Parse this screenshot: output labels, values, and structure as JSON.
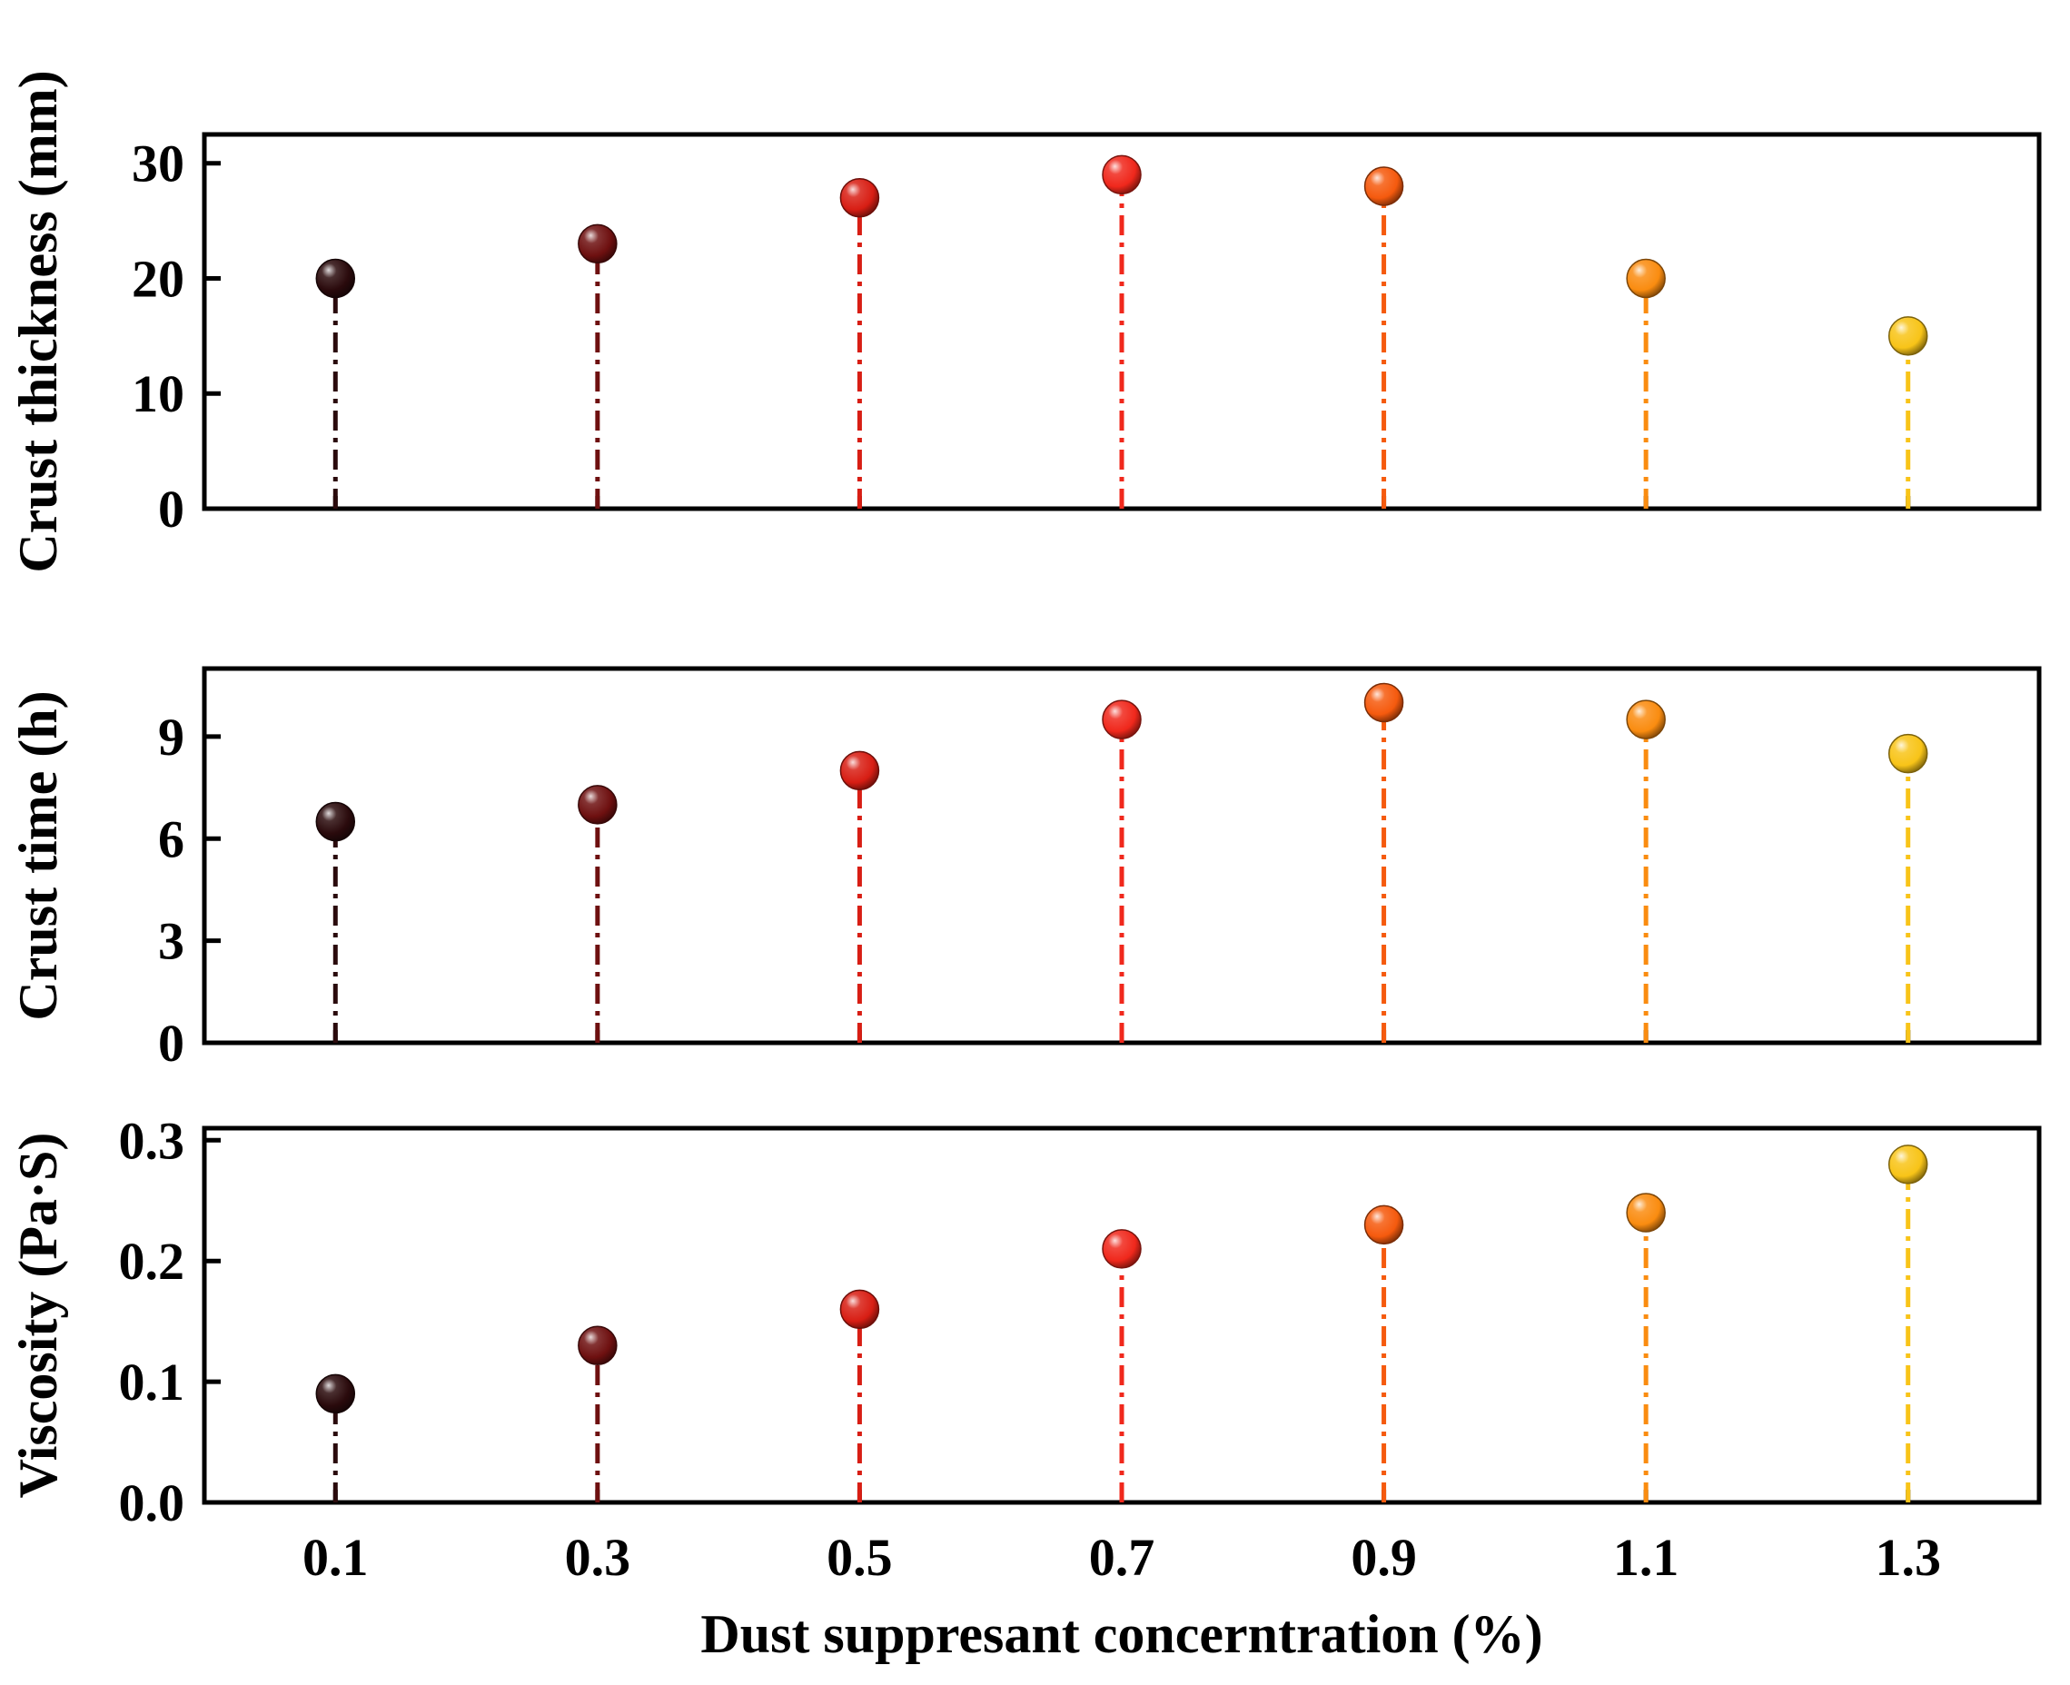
{
  "chart_data": {
    "type": "stem",
    "x": [
      0.1,
      0.3,
      0.5,
      0.7,
      0.9,
      1.1,
      1.3
    ],
    "x_tick_labels": [
      "0.1",
      "0.3",
      "0.5",
      "0.7",
      "0.9",
      "1.1",
      "1.3"
    ],
    "xlim": [
      0.0,
      1.4
    ],
    "xlabel": "Dust suppresant concerntration (%)",
    "point_colors": [
      "#2a0a0c",
      "#6e1010",
      "#d81e14",
      "#f0281c",
      "#f55a0e",
      "#fa8c10",
      "#f8c418"
    ],
    "panels": [
      {
        "ylabel": "Crust thickness (mm)",
        "ylim": [
          0,
          32.5
        ],
        "y_ticks": [
          0,
          10,
          20,
          30
        ],
        "y_tick_labels": [
          "0",
          "10",
          "20",
          "30"
        ],
        "values": [
          20,
          23,
          27,
          29,
          28,
          20,
          15
        ]
      },
      {
        "ylabel": "Crust time (h)",
        "ylim": [
          0,
          11
        ],
        "y_ticks": [
          0,
          3,
          6,
          9
        ],
        "y_tick_labels": [
          "0",
          "3",
          "6",
          "9"
        ],
        "values": [
          6.5,
          7,
          8,
          9.5,
          10,
          9.5,
          8.5
        ]
      },
      {
        "ylabel": "Viscosity (Pa·S)",
        "ylim": [
          0,
          0.31
        ],
        "y_ticks": [
          0,
          0.1,
          0.2,
          0.3
        ],
        "y_tick_labels": [
          "0.0",
          "0.1",
          "0.2",
          "0.3"
        ],
        "values": [
          0.09,
          0.13,
          0.16,
          0.21,
          0.23,
          0.24,
          0.28
        ]
      }
    ]
  }
}
